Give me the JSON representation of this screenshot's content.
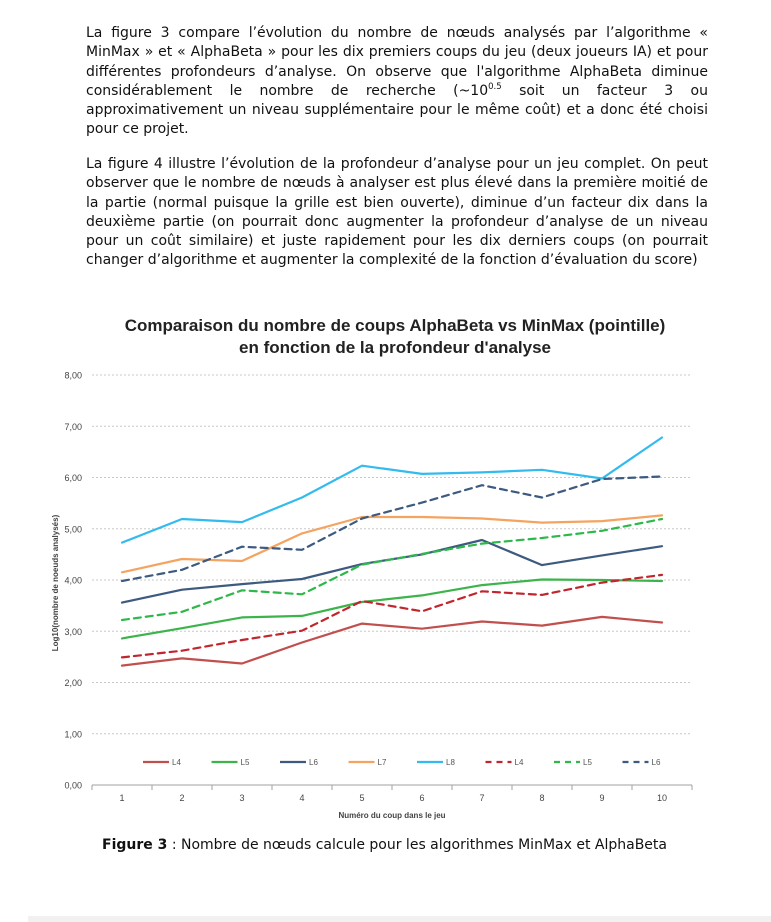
{
  "paragraph1": {
    "before_sup": "La figure 3 compare l’évolution du nombre de nœuds analysés par l’algorithme « MinMax » et « AlphaBeta » pour les dix premiers coups du jeu (deux joueurs IA) et pour différentes profondeurs d’analyse. On observe que l'algorithme AlphaBeta diminue considérablement le nombre de recherche (~10",
    "sup": "0.5",
    "after_sup": " soit un facteur 3 ou approximativement un niveau supplémentaire pour le même coût) et a donc été choisi pour ce projet."
  },
  "paragraph2": "La figure 4 illustre l’évolution de la profondeur d’analyse pour un jeu complet. On peut observer que le nombre de nœuds à analyser est plus élevé dans la première moitié de la partie (normal puisque la grille est bien ouverte), diminue d’un facteur dix dans la deuxième partie (on pourrait donc augmenter la profondeur d’analyse de un niveau pour un coût similaire) et juste rapidement pour les dix derniers coups (on pourrait changer d’algorithme et augmenter la complexité de la fonction d’évaluation du score)",
  "chart_data": {
    "type": "line",
    "title_line1": "Comparaison du nombre de coups  AlphaBeta vs MinMax (pointille)",
    "title_line2": "en fonction de la profondeur d'analyse",
    "xlabel": "Numéro du coup dans le jeu",
    "ylabel": "Log10(nombre de noeuds analysés)",
    "categories": [
      "1",
      "2",
      "3",
      "4",
      "5",
      "6",
      "7",
      "8",
      "9",
      "10"
    ],
    "y_ticks": [
      "0,00",
      "1,00",
      "2,00",
      "3,00",
      "4,00",
      "5,00",
      "6,00",
      "7,00",
      "8,00"
    ],
    "ylim": [
      0,
      8
    ],
    "grid": true,
    "legend_position": "bottom-inside",
    "series": [
      {
        "name": "L4",
        "style": "solid",
        "color": "#c0504d",
        "values": [
          2.33,
          2.47,
          2.37,
          2.78,
          3.15,
          3.05,
          3.19,
          3.11,
          3.28,
          3.17
        ]
      },
      {
        "name": "L5",
        "style": "solid",
        "color": "#3cb44b",
        "values": [
          2.86,
          3.06,
          3.27,
          3.3,
          3.57,
          3.7,
          3.9,
          4.01,
          4.0,
          3.98
        ]
      },
      {
        "name": "L6",
        "style": "solid",
        "color": "#3d5a80",
        "values": [
          3.56,
          3.81,
          3.92,
          4.02,
          4.31,
          4.5,
          4.78,
          4.29,
          4.48,
          4.66
        ]
      },
      {
        "name": "L7",
        "style": "solid",
        "color": "#f4a460",
        "values": [
          4.15,
          4.41,
          4.37,
          4.91,
          5.23,
          5.23,
          5.2,
          5.12,
          5.15,
          5.26
        ]
      },
      {
        "name": "L8",
        "style": "solid",
        "color": "#33bbee",
        "values": [
          4.73,
          5.19,
          5.13,
          5.61,
          6.23,
          6.07,
          6.1,
          6.15,
          5.98,
          6.78
        ]
      },
      {
        "name": "L4",
        "style": "dashed",
        "color": "#c0262d",
        "values": [
          2.49,
          2.62,
          2.83,
          3.01,
          3.59,
          3.39,
          3.78,
          3.71,
          3.95,
          4.1
        ]
      },
      {
        "name": "L5",
        "style": "dashed",
        "color": "#2eb84a",
        "values": [
          3.22,
          3.38,
          3.8,
          3.72,
          4.3,
          4.51,
          4.71,
          4.82,
          4.96,
          5.19
        ]
      },
      {
        "name": "L6",
        "style": "dashed",
        "color": "#3d5a80",
        "values": [
          3.98,
          4.2,
          4.65,
          4.59,
          5.2,
          5.51,
          5.85,
          5.61,
          5.97,
          6.02
        ]
      }
    ]
  },
  "caption": {
    "label": "Figure 3",
    "text": " : Nombre de nœuds calcule pour les algorithmes MinMax et AlphaBeta"
  }
}
